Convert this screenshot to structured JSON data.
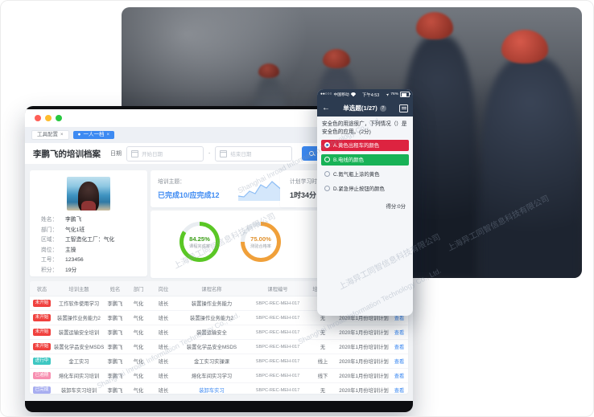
{
  "watermark": {
    "cn": "上海异工同智信息科技有限公司",
    "en": "Shanghai Inroad Information Technology Co., Ltd."
  },
  "desktop": {
    "tabs": [
      {
        "label": "工具配置",
        "close": "×"
      },
      {
        "marker": "●",
        "label": "一人一档",
        "close": "×"
      }
    ],
    "page_title": "李鹏飞的培训档案",
    "filters": {
      "date_label": "日期",
      "start_placeholder": "开始日期",
      "separator": "-",
      "end_placeholder": "结束日期",
      "search_label": "查询"
    },
    "profile": {
      "fields": [
        {
          "label": "姓名：",
          "value": "李鹏飞"
        },
        {
          "label": "部门：",
          "value": "气化1班"
        },
        {
          "label": "区域：",
          "value": "工智造化工厂：气化"
        },
        {
          "label": "岗位：",
          "value": "主操"
        },
        {
          "label": "工号：",
          "value": "123456"
        },
        {
          "label": "积分：",
          "value": "19分"
        }
      ]
    },
    "summary": {
      "topic_label": "培训主题：",
      "topic_value": "已完成10/应完成12",
      "duration_label": "计划学习时长",
      "duration_value": "1时34分"
    },
    "gauges": [
      {
        "value": "84.25%",
        "label": "课程完成率",
        "percent": 84.25,
        "color": "#5ac725"
      },
      {
        "value": "75.00%",
        "label": "测验合格率",
        "percent": 75.0,
        "color": "#f0a03a"
      }
    ],
    "sparkline": {
      "points": [
        24,
        25,
        18,
        21,
        10,
        14,
        6,
        12,
        18,
        10
      ],
      "stroke": "#8ebef5",
      "fill": "#d4e7fb"
    },
    "table": {
      "headers": [
        "状态",
        "培训主题",
        "姓名",
        "部门",
        "岗位",
        "课程名称",
        "课程编号",
        "培训方式",
        "培训计划",
        "操作"
      ],
      "rows": [
        [
          "未开始",
          "工作软件使用学习",
          "李鹏飞",
          "气化",
          "班长",
          "装置操作业务能力",
          "SBPC-REC-MEH-017",
          "无",
          "2020年1月份培训计划",
          "查看"
        ],
        [
          "未开始",
          "装置操作业务能力2",
          "李鹏飞",
          "气化",
          "班长",
          "装置操作业务能力2",
          "SBPC-REC-MEH-017",
          "无",
          "2020年1月份培训计划",
          "查看"
        ],
        [
          "未开始",
          "装置运输安全培训",
          "李鹏飞",
          "气化",
          "班长",
          "装置运输安全",
          "SBPC-REC-MEH-017",
          "无",
          "2020年1月份培训计划",
          "查看"
        ],
        [
          "未开始",
          "装置化学品安全MSDS",
          "李鹏飞",
          "气化",
          "班长",
          "装置化学品安全MSDS",
          "SBPC-REC-MEH-017",
          "无",
          "2020年1月份培训计划",
          "查看"
        ],
        [
          "进行中",
          "金工实习",
          "李鹏飞",
          "气化",
          "班长",
          "金工实习实操课",
          "SBPC-REC-MEH-017",
          "线上",
          "2020年1月份培训计划",
          "查看"
        ],
        [
          "已逾期",
          "熔化车间实习培训",
          "李鹏飞",
          "气化",
          "班长",
          "熔化车间实习学习",
          "SBPC-REC-MEH-017",
          "线下",
          "2020年1月份培训计划",
          "查看"
        ],
        [
          "已完成",
          "装卸车实习培训",
          "李鹏飞",
          "气化",
          "班长",
          "装卸车实习",
          "SBPC-REC-MEH-017",
          "无",
          "2020年1月份培训计划",
          "查看"
        ]
      ]
    }
  },
  "phone": {
    "status": {
      "signal": "●●○○○",
      "carrier": "中国移动",
      "time": "下午4:53",
      "battery": "76%"
    },
    "nav": {
      "back": "←",
      "title": "单选题(1/27)",
      "help": "?"
    },
    "question": "安全色的用途很广，下列情况（）是安全色的应用。(2分)",
    "options": [
      {
        "text": "A.黄色出租车的颜色",
        "state": "wrong"
      },
      {
        "text": "B.电线的颜色",
        "state": "correct"
      },
      {
        "text": "C.氮气瓶上涂的黄色",
        "state": "plain"
      },
      {
        "text": "D.紧急停止按钮的颜色",
        "state": "plain"
      }
    ],
    "score": "得分:0分"
  }
}
